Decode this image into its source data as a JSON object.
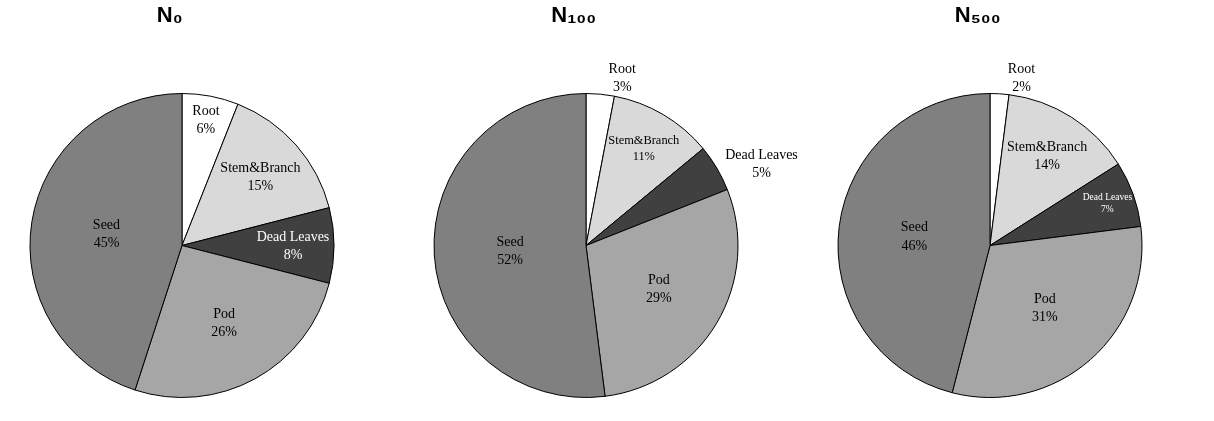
{
  "chart_data": [
    {
      "type": "pie",
      "title": "N₀",
      "categories": [
        "Root",
        "Stem&Branch",
        "Dead Leaves",
        "Pod",
        "Seed"
      ],
      "values": [
        6,
        15,
        8,
        26,
        45
      ],
      "value_labels": [
        "6%",
        "15%",
        "8%",
        "26%",
        "45%"
      ],
      "colors": [
        "#ffffff",
        "#d9d9d9",
        "#404040",
        "#a6a6a6",
        "#808080"
      ],
      "legend": false
    },
    {
      "type": "pie",
      "title": "N₁₀₀",
      "categories": [
        "Root",
        "Stem&Branch",
        "Dead Leaves",
        "Pod",
        "Seed"
      ],
      "values": [
        3,
        11,
        5,
        29,
        52
      ],
      "value_labels": [
        "3%",
        "11%",
        "5%",
        "29%",
        "52%"
      ],
      "colors": [
        "#ffffff",
        "#d9d9d9",
        "#404040",
        "#a6a6a6",
        "#808080"
      ],
      "legend": false
    },
    {
      "type": "pie",
      "title": "N₅₀₀",
      "categories": [
        "Root",
        "Stem&Branch",
        "Dead Leaves",
        "Pod",
        "Seed"
      ],
      "values": [
        2,
        14,
        7,
        31,
        46
      ],
      "value_labels": [
        "2%",
        "14%",
        "7%",
        "31%",
        "46%"
      ],
      "colors": [
        "#ffffff",
        "#d9d9d9",
        "#404040",
        "#a6a6a6",
        "#808080"
      ],
      "legend": false
    }
  ]
}
